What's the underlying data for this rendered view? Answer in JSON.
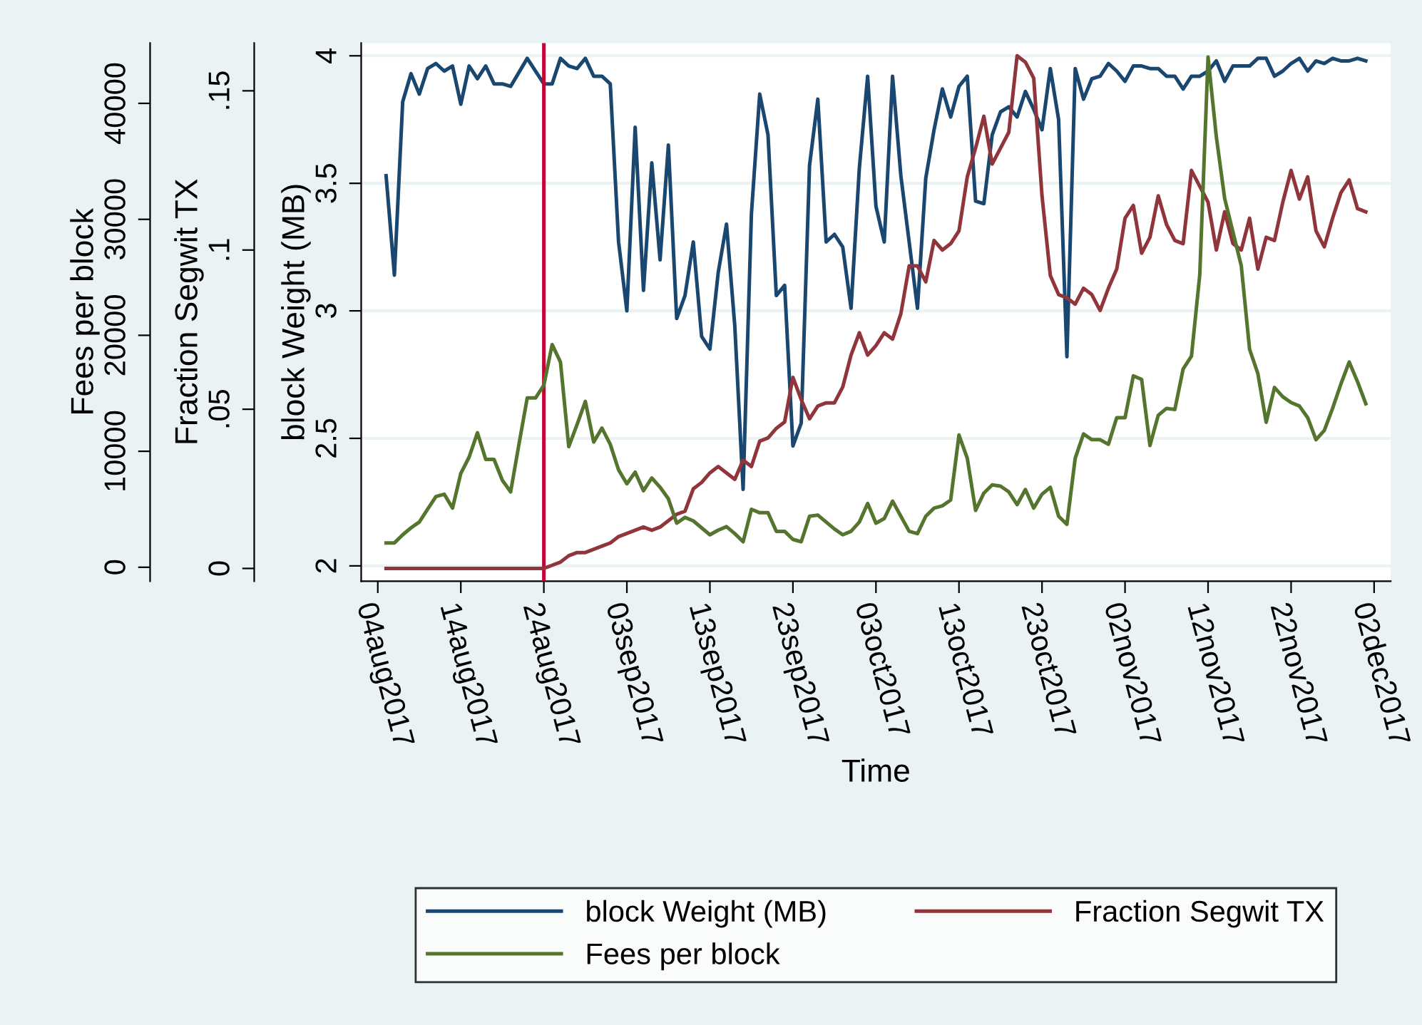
{
  "chart_data": {
    "type": "line",
    "xlabel": "Time",
    "ylabel": "block Weight (MB)",
    "y2label": "Fraction Segwit TX",
    "y3label": "Fees per block",
    "xlim": [
      "2017-08-02",
      "2017-12-04"
    ],
    "xticks": [
      {
        "value": "2017-08-04",
        "label": "04aug2017"
      },
      {
        "value": "2017-08-14",
        "label": "14aug2017"
      },
      {
        "value": "2017-08-24",
        "label": "24aug2017"
      },
      {
        "value": "2017-09-03",
        "label": "03sep2017"
      },
      {
        "value": "2017-09-13",
        "label": "13sep2017"
      },
      {
        "value": "2017-09-23",
        "label": "23sep2017"
      },
      {
        "value": "2017-10-03",
        "label": "03oct2017"
      },
      {
        "value": "2017-10-13",
        "label": "13oct2017"
      },
      {
        "value": "2017-10-23",
        "label": "23oct2017"
      },
      {
        "value": "2017-11-02",
        "label": "02nov2017"
      },
      {
        "value": "2017-11-12",
        "label": "12nov2017"
      },
      {
        "value": "2017-11-22",
        "label": "22nov2017"
      },
      {
        "value": "2017-12-02",
        "label": "02dec2017"
      }
    ],
    "ylim": [
      1.94,
      4.05
    ],
    "yticks": [
      2,
      2.5,
      3,
      3.5,
      4
    ],
    "y2lim": [
      -0.004,
      0.165
    ],
    "y2ticks": [
      0,
      {
        "value": 0.05,
        "label": ".05"
      },
      {
        "value": 0.1,
        "label": ".1"
      },
      {
        "value": 0.15,
        "label": ".15"
      }
    ],
    "y3lim": [
      -1200,
      45200
    ],
    "y3ticks": [
      0,
      10000,
      20000,
      30000,
      40000
    ],
    "grid": "y",
    "legend": "bottom",
    "line_style": "solid",
    "marker": "none",
    "ref_lines": [
      {
        "axis": "x",
        "value": "2017-08-24",
        "color": "#c10534"
      }
    ],
    "x": [
      "2017-08-05",
      "2017-08-06",
      "2017-08-07",
      "2017-08-08",
      "2017-08-09",
      "2017-08-10",
      "2017-08-11",
      "2017-08-12",
      "2017-08-13",
      "2017-08-14",
      "2017-08-15",
      "2017-08-16",
      "2017-08-17",
      "2017-08-18",
      "2017-08-19",
      "2017-08-20",
      "2017-08-21",
      "2017-08-22",
      "2017-08-23",
      "2017-08-24",
      "2017-08-25",
      "2017-08-26",
      "2017-08-27",
      "2017-08-28",
      "2017-08-29",
      "2017-08-30",
      "2017-08-31",
      "2017-09-01",
      "2017-09-02",
      "2017-09-03",
      "2017-09-04",
      "2017-09-05",
      "2017-09-06",
      "2017-09-07",
      "2017-09-08",
      "2017-09-09",
      "2017-09-10",
      "2017-09-11",
      "2017-09-12",
      "2017-09-13",
      "2017-09-14",
      "2017-09-15",
      "2017-09-16",
      "2017-09-17",
      "2017-09-18",
      "2017-09-19",
      "2017-09-20",
      "2017-09-21",
      "2017-09-22",
      "2017-09-23",
      "2017-09-24",
      "2017-09-25",
      "2017-09-26",
      "2017-09-27",
      "2017-09-28",
      "2017-09-29",
      "2017-09-30",
      "2017-10-01",
      "2017-10-02",
      "2017-10-03",
      "2017-10-04",
      "2017-10-05",
      "2017-10-06",
      "2017-10-07",
      "2017-10-08",
      "2017-10-09",
      "2017-10-10",
      "2017-10-11",
      "2017-10-12",
      "2017-10-13",
      "2017-10-14",
      "2017-10-15",
      "2017-10-16",
      "2017-10-17",
      "2017-10-18",
      "2017-10-19",
      "2017-10-20",
      "2017-10-21",
      "2017-10-22",
      "2017-10-23",
      "2017-10-24",
      "2017-10-25",
      "2017-10-26",
      "2017-10-27",
      "2017-10-28",
      "2017-10-29",
      "2017-10-30",
      "2017-10-31",
      "2017-11-01",
      "2017-11-02",
      "2017-11-03",
      "2017-11-04",
      "2017-11-05",
      "2017-11-06",
      "2017-11-07",
      "2017-11-08",
      "2017-11-09",
      "2017-11-10",
      "2017-11-11",
      "2017-11-12",
      "2017-11-13",
      "2017-11-14",
      "2017-11-15",
      "2017-11-16",
      "2017-11-17",
      "2017-11-18",
      "2017-11-19",
      "2017-11-20",
      "2017-11-21",
      "2017-11-22",
      "2017-11-23",
      "2017-11-24",
      "2017-11-25",
      "2017-11-26",
      "2017-11-27",
      "2017-11-28",
      "2017-11-29",
      "2017-11-30",
      "2017-12-01"
    ],
    "series": [
      {
        "name": "block Weight (MB)",
        "color": "#1a476f",
        "x": [
          "2017-08-05",
          "2017-08-06",
          "2017-08-07",
          "2017-08-08",
          "2017-08-09",
          "2017-08-10",
          "2017-08-11",
          "2017-08-12",
          "2017-08-13",
          "2017-08-14",
          "2017-08-15",
          "2017-08-16",
          "2017-08-17",
          "2017-08-18",
          "2017-08-19",
          "2017-08-20",
          "2017-08-22",
          "2017-08-24",
          "2017-08-25",
          "2017-08-26",
          "2017-08-27",
          "2017-08-28",
          "2017-08-29",
          "2017-08-30",
          "2017-08-31",
          "2017-09-01",
          "2017-09-02",
          "2017-09-03",
          "2017-09-04",
          "2017-09-05",
          "2017-09-06",
          "2017-09-07",
          "2017-09-08",
          "2017-09-09",
          "2017-09-10",
          "2017-09-11",
          "2017-09-12",
          "2017-09-13",
          "2017-09-14",
          "2017-09-15",
          "2017-09-16",
          "2017-09-17",
          "2017-09-18",
          "2017-09-19",
          "2017-09-20",
          "2017-09-21",
          "2017-09-22",
          "2017-09-23",
          "2017-09-24",
          "2017-09-25",
          "2017-09-26",
          "2017-09-27",
          "2017-09-28",
          "2017-09-29",
          "2017-09-30",
          "2017-10-01",
          "2017-10-02",
          "2017-10-03",
          "2017-10-04",
          "2017-10-05",
          "2017-10-06",
          "2017-10-07",
          "2017-10-08",
          "2017-10-09",
          "2017-10-10",
          "2017-10-11",
          "2017-10-12",
          "2017-10-13",
          "2017-10-14",
          "2017-10-15",
          "2017-10-16",
          "2017-10-17",
          "2017-10-18",
          "2017-10-19",
          "2017-10-20",
          "2017-10-21",
          "2017-10-22",
          "2017-10-23",
          "2017-10-24",
          "2017-10-25",
          "2017-10-26",
          "2017-10-27",
          "2017-10-28",
          "2017-10-29",
          "2017-10-30",
          "2017-10-31",
          "2017-11-01",
          "2017-11-02",
          "2017-11-03",
          "2017-11-04",
          "2017-11-05",
          "2017-11-06",
          "2017-11-07",
          "2017-11-08",
          "2017-11-09",
          "2017-11-10",
          "2017-11-11",
          "2017-11-12",
          "2017-11-13",
          "2017-11-14",
          "2017-11-15",
          "2017-11-16",
          "2017-11-17",
          "2017-11-18",
          "2017-11-19",
          "2017-11-20",
          "2017-11-21",
          "2017-11-22",
          "2017-11-23",
          "2017-11-24",
          "2017-11-25",
          "2017-11-26",
          "2017-11-27",
          "2017-11-28",
          "2017-11-29",
          "2017-11-30",
          "2017-12-01"
        ],
        "values": [
          3.53,
          3.14,
          3.82,
          3.93,
          3.85,
          3.95,
          3.97,
          3.94,
          3.96,
          3.81,
          3.96,
          3.91,
          3.96,
          3.89,
          3.89,
          3.88,
          3.99,
          3.89,
          3.89,
          3.99,
          3.96,
          3.95,
          3.99,
          3.92,
          3.92,
          3.89,
          3.27,
          3.0,
          3.72,
          3.08,
          3.58,
          3.2,
          3.65,
          2.97,
          3.06,
          3.27,
          2.9,
          2.85,
          3.15,
          3.34,
          2.94,
          2.3,
          3.38,
          3.85,
          3.69,
          3.06,
          3.1,
          2.47,
          2.56,
          3.57,
          3.83,
          3.27,
          3.3,
          3.25,
          3.01,
          3.56,
          3.92,
          3.41,
          3.27,
          3.92,
          3.53,
          3.27,
          3.01,
          3.52,
          3.71,
          3.87,
          3.76,
          3.88,
          3.92,
          3.43,
          3.42,
          3.69,
          3.78,
          3.8,
          3.76,
          3.86,
          3.79,
          3.71,
          3.95,
          3.75,
          2.82,
          3.95,
          3.83,
          3.91,
          3.92,
          3.97,
          3.94,
          3.9,
          3.96,
          3.96,
          3.95,
          3.95,
          3.92,
          3.92,
          3.87,
          3.92,
          3.92,
          3.94,
          3.98,
          3.9,
          3.96,
          3.96,
          3.96,
          3.99,
          3.99,
          3.92,
          3.94,
          3.97,
          3.99,
          3.94,
          3.98,
          3.97,
          3.99,
          3.98,
          3.98,
          3.99,
          3.98
        ]
      },
      {
        "name": "Fraction Segwit TX",
        "color": "#90353b",
        "axis": "y2",
        "x": [
          "2017-08-05",
          "2017-08-23",
          "2017-08-24",
          "2017-08-25",
          "2017-08-26",
          "2017-08-27",
          "2017-08-28",
          "2017-08-29",
          "2017-08-30",
          "2017-08-31",
          "2017-09-01",
          "2017-09-02",
          "2017-09-03",
          "2017-09-04",
          "2017-09-05",
          "2017-09-06",
          "2017-09-07",
          "2017-09-08",
          "2017-09-09",
          "2017-09-10",
          "2017-09-11",
          "2017-09-12",
          "2017-09-13",
          "2017-09-14",
          "2017-09-15",
          "2017-09-16",
          "2017-09-17",
          "2017-09-18",
          "2017-09-19",
          "2017-09-20",
          "2017-09-21",
          "2017-09-22",
          "2017-09-23",
          "2017-09-24",
          "2017-09-25",
          "2017-09-26",
          "2017-09-27",
          "2017-09-28",
          "2017-09-29",
          "2017-09-30",
          "2017-10-01",
          "2017-10-02",
          "2017-10-03",
          "2017-10-04",
          "2017-10-05",
          "2017-10-06",
          "2017-10-07",
          "2017-10-08",
          "2017-10-09",
          "2017-10-10",
          "2017-10-11",
          "2017-10-12",
          "2017-10-13",
          "2017-10-14",
          "2017-10-15",
          "2017-10-16",
          "2017-10-17",
          "2017-10-18",
          "2017-10-19",
          "2017-10-20",
          "2017-10-21",
          "2017-10-22",
          "2017-10-23",
          "2017-10-24",
          "2017-10-25",
          "2017-10-26",
          "2017-10-27",
          "2017-10-28",
          "2017-10-29",
          "2017-10-30",
          "2017-10-31",
          "2017-11-01",
          "2017-11-02",
          "2017-11-03",
          "2017-11-04",
          "2017-11-05",
          "2017-11-06",
          "2017-11-07",
          "2017-11-08",
          "2017-11-09",
          "2017-11-10",
          "2017-11-11",
          "2017-11-12",
          "2017-11-13",
          "2017-11-14",
          "2017-11-15",
          "2017-11-16",
          "2017-11-17",
          "2017-11-18",
          "2017-11-19",
          "2017-11-20",
          "2017-11-21",
          "2017-11-22",
          "2017-11-23",
          "2017-11-24",
          "2017-11-25",
          "2017-11-26",
          "2017-11-27",
          "2017-11-28",
          "2017-11-29",
          "2017-11-30",
          "2017-12-01"
        ],
        "values": [
          0,
          0,
          0,
          0.001,
          0.002,
          0.004,
          0.005,
          0.005,
          0.006,
          0.007,
          0.008,
          0.01,
          0.011,
          0.012,
          0.013,
          0.012,
          0.013,
          0.015,
          0.017,
          0.018,
          0.025,
          0.027,
          0.03,
          0.032,
          0.03,
          0.028,
          0.034,
          0.032,
          0.04,
          0.041,
          0.044,
          0.046,
          0.06,
          0.053,
          0.047,
          0.051,
          0.052,
          0.052,
          0.057,
          0.067,
          0.074,
          0.067,
          0.07,
          0.074,
          0.072,
          0.08,
          0.095,
          0.095,
          0.09,
          0.103,
          0.1,
          0.102,
          0.106,
          0.123,
          0.132,
          0.142,
          0.127,
          0.132,
          0.137,
          0.161,
          0.159,
          0.154,
          0.117,
          0.092,
          0.086,
          0.085,
          0.083,
          0.088,
          0.086,
          0.081,
          0.088,
          0.094,
          0.11,
          0.114,
          0.099,
          0.104,
          0.117,
          0.108,
          0.103,
          0.102,
          0.125,
          0.12,
          0.115,
          0.1,
          0.112,
          0.102,
          0.1,
          0.11,
          0.094,
          0.104,
          0.103,
          0.115,
          0.125,
          0.116,
          0.123,
          0.106,
          0.101,
          0.11,
          0.118,
          0.122,
          0.113,
          0.112
        ]
      },
      {
        "name": "Fees per block",
        "color": "#55752f",
        "axis": "y3",
        "values": [
          2100,
          2100,
          2800,
          3400,
          3900,
          5000,
          6100,
          6300,
          5100,
          8100,
          9500,
          11600,
          9300,
          9300,
          7500,
          6500,
          10600,
          14600,
          14600,
          15700,
          19200,
          17700,
          10400,
          12300,
          14300,
          10800,
          12000,
          10600,
          8400,
          7200,
          8200,
          6600,
          7700,
          6900,
          5900,
          3800,
          4300,
          4000,
          3400,
          2800,
          3200,
          3500,
          2900,
          2200,
          5000,
          4700,
          4700,
          3100,
          3100,
          2400,
          2200,
          4400,
          4500,
          3900,
          3300,
          2800,
          3100,
          3900,
          5500,
          3800,
          4200,
          5700,
          4400,
          3100,
          2900,
          4400,
          5100,
          5300,
          5800,
          11400,
          9400,
          4900,
          6400,
          7100,
          7000,
          6500,
          5400,
          6700,
          5100,
          6300,
          6900,
          4400,
          3700,
          9400,
          11500,
          11000,
          11000,
          10600,
          12900,
          12900,
          16500,
          16200,
          10500,
          13100,
          13700,
          13600,
          17100,
          18200,
          25200,
          44000,
          37100,
          31800,
          28900,
          26000,
          18800,
          16700,
          12500,
          15500,
          14700,
          14200,
          13900,
          12900,
          11000,
          11800,
          13700,
          15800,
          17700,
          16000,
          14100
        ]
      }
    ]
  }
}
